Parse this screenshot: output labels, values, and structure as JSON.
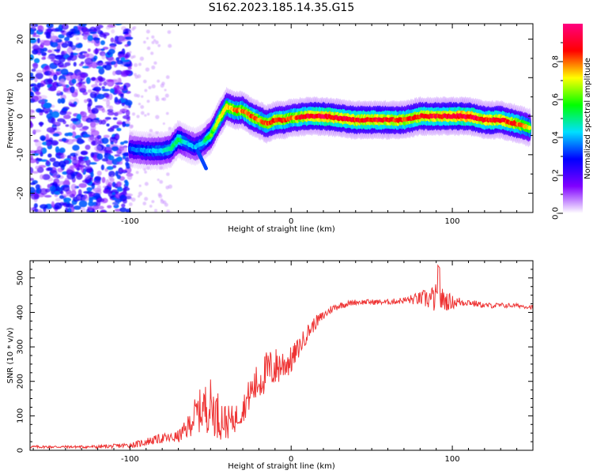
{
  "figure_title": "S162.2023.185.14.35.G15",
  "colorbar": {
    "label": "Normalized spectral amplitude",
    "ticks": [
      "0.0",
      "0.2",
      "0.4",
      "0.6",
      "0.8"
    ],
    "tick_values": [
      0.0,
      0.2,
      0.4,
      0.6,
      0.8
    ],
    "range": [
      0,
      1
    ],
    "colormap": [
      "#ffffff",
      "#8000ff",
      "#0000ff",
      "#00e0ff",
      "#00ff00",
      "#ffff00",
      "#ff0000",
      "#ff0080"
    ]
  },
  "chart_data": [
    {
      "type": "heatmap",
      "title": "",
      "xlabel": "Height of straight line (km)",
      "ylabel": "Frequency (Hz)",
      "xlim": [
        -162,
        150
      ],
      "ylim": [
        -25,
        24
      ],
      "xticks": [
        -100,
        0,
        100
      ],
      "yticks": [
        20,
        10,
        0,
        -10,
        -20
      ],
      "ridge": {
        "description_units": "frequency (Hz) of peak amplitude vs height (km)",
        "x": [
          -100,
          -90,
          -80,
          -75,
          -70,
          -65,
          -60,
          -55,
          -50,
          -45,
          -40,
          -35,
          -30,
          -25,
          -20,
          -15,
          -10,
          -5,
          0,
          10,
          20,
          30,
          40,
          50,
          60,
          70,
          80,
          90,
          100,
          110,
          120,
          130,
          140,
          148
        ],
        "y": [
          -8.5,
          -9,
          -9,
          -8.5,
          -6,
          -7,
          -8,
          -7,
          -5,
          -1,
          2.5,
          1.5,
          1.5,
          0,
          -1,
          -2,
          -1,
          -1,
          -0.5,
          0,
          0,
          -0.5,
          -1,
          -1,
          -1,
          -1,
          0,
          0,
          0,
          0,
          -1,
          -1,
          -2,
          -3
        ],
        "amplitude": [
          0.35,
          0.4,
          0.45,
          0.5,
          0.55,
          0.45,
          0.4,
          0.45,
          0.6,
          0.7,
          0.75,
          0.8,
          0.8,
          0.85,
          0.8,
          0.85,
          0.85,
          0.85,
          0.8,
          0.9,
          0.95,
          0.9,
          0.9,
          0.9,
          0.9,
          0.85,
          0.9,
          0.9,
          0.95,
          0.95,
          0.9,
          0.9,
          0.85,
          0.7
        ]
      }
    },
    {
      "type": "line",
      "title": "",
      "xlabel": "Height of straight line (km)",
      "ylabel": "SNR (10 * v/v)",
      "xlim": [
        -162,
        150
      ],
      "ylim": [
        0,
        550
      ],
      "xticks": [
        -100,
        0,
        100
      ],
      "yticks": [
        0,
        100,
        200,
        300,
        400,
        500
      ],
      "series": [
        {
          "color": "#ee3333",
          "x": [
            -162,
            -150,
            -140,
            -130,
            -120,
            -110,
            -100,
            -95,
            -90,
            -85,
            -80,
            -75,
            -70,
            -65,
            -60,
            -55,
            -50,
            -45,
            -40,
            -35,
            -30,
            -25,
            -20,
            -15,
            -10,
            -5,
            0,
            5,
            10,
            15,
            20,
            25,
            30,
            40,
            50,
            60,
            70,
            80,
            90,
            100,
            110,
            120,
            130,
            140,
            150
          ],
          "y": [
            10,
            10,
            10,
            10,
            10,
            12,
            15,
            18,
            25,
            30,
            35,
            35,
            40,
            60,
            100,
            120,
            130,
            100,
            80,
            90,
            120,
            170,
            200,
            230,
            240,
            250,
            260,
            300,
            340,
            370,
            390,
            410,
            420,
            430,
            430,
            430,
            435,
            440,
            440,
            430,
            430,
            420,
            420,
            420,
            415
          ],
          "noise_amplitude": [
            4,
            4,
            4,
            4,
            5,
            6,
            8,
            10,
            12,
            12,
            15,
            15,
            18,
            30,
            50,
            70,
            80,
            70,
            50,
            40,
            40,
            50,
            60,
            60,
            60,
            50,
            40,
            30,
            25,
            20,
            15,
            12,
            10,
            8,
            8,
            8,
            10,
            20,
            45,
            20,
            10,
            8,
            8,
            6,
            6
          ]
        }
      ]
    }
  ]
}
